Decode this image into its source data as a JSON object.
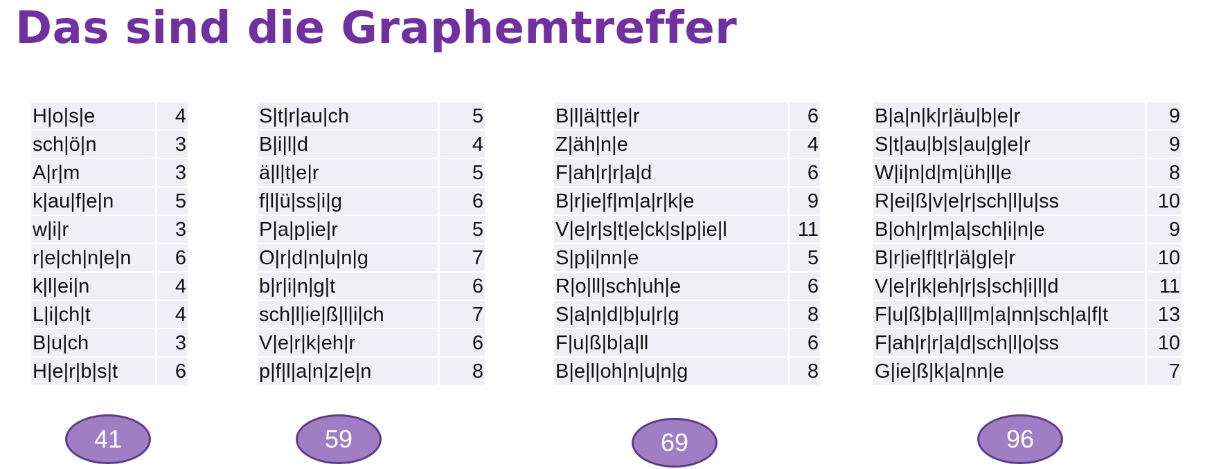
{
  "title": "Das sind die Graphemtreffer",
  "columns": [
    {
      "rows": [
        {
          "word": "H|o|s|e",
          "count": "4"
        },
        {
          "word": "sch|ö|n",
          "count": "3"
        },
        {
          "word": "A|r|m",
          "count": "3"
        },
        {
          "word": "k|au|f|e|n",
          "count": "5"
        },
        {
          "word": "w|i|r",
          "count": "3"
        },
        {
          "word": "r|e|ch|n|e|n",
          "count": "6"
        },
        {
          "word": "k|l|ei|n",
          "count": "4"
        },
        {
          "word": "L|i|ch|t",
          "count": "4"
        },
        {
          "word": "B|u|ch",
          "count": "3"
        },
        {
          "word": "H|e|r|b|s|t",
          "count": "6"
        }
      ],
      "total": "41"
    },
    {
      "rows": [
        {
          "word": "S|t|r|au|ch",
          "count": "5"
        },
        {
          "word": "B|i|l|d",
          "count": "4"
        },
        {
          "word": "ä|l|t|e|r",
          "count": "5"
        },
        {
          "word": "f|l|ü|ss|i|g",
          "count": "6"
        },
        {
          "word": "P|a|p|ie|r",
          "count": "5"
        },
        {
          "word": "O|r|d|n|u|n|g",
          "count": "7"
        },
        {
          "word": "b|r|i|n|g|t",
          "count": "6"
        },
        {
          "word": "sch|l|ie|ß|l|i|ch",
          "count": "7"
        },
        {
          "word": "V|e|r|k|eh|r",
          "count": "6"
        },
        {
          "word": "p|f|l|a|n|z|e|n",
          "count": "8"
        }
      ],
      "total": "59"
    },
    {
      "rows": [
        {
          "word": "B|l|ä|tt|e|r",
          "count": "6"
        },
        {
          "word": "Z|äh|n|e",
          "count": "4"
        },
        {
          "word": "F|ah|r|r|a|d",
          "count": "6"
        },
        {
          "word": "B|r|ie|f|m|a|r|k|e",
          "count": "9"
        },
        {
          "word": "V|e|r|s|t|e|ck|s|p|ie|l",
          "count": "11"
        },
        {
          "word": "S|p|i|nn|e",
          "count": "5"
        },
        {
          "word": "R|o|ll|sch|uh|e",
          "count": "6"
        },
        {
          "word": "S|a|n|d|b|u|r|g",
          "count": "8"
        },
        {
          "word": "F|u|ß|b|a|ll",
          "count": "6"
        },
        {
          "word": "B|e|l|oh|n|u|n|g",
          "count": "8"
        }
      ],
      "total": "69"
    },
    {
      "rows": [
        {
          "word": "B|a|n|k|r|äu|b|e|r",
          "count": "9"
        },
        {
          "word": "S|t|au|b|s|au|g|e|r",
          "count": "9"
        },
        {
          "word": "W|i|n|d|m|üh|l|e",
          "count": "8"
        },
        {
          "word": "R|ei|ß|v|e|r|sch|l|u|ss",
          "count": "10"
        },
        {
          "word": "B|oh|r|m|a|sch|i|n|e",
          "count": "9"
        },
        {
          "word": "B|r|ie|f|t|r|ä|g|e|r",
          "count": "10"
        },
        {
          "word": "V|e|r|k|eh|r|s|sch|i|l|d",
          "count": "11"
        },
        {
          "word": "F|u|ß|b|a|ll|m|a|nn|sch|a|f|t",
          "count": "13"
        },
        {
          "word": "F|ah|r|r|a|d|sch|l|o|ss",
          "count": "10"
        },
        {
          "word": "G|ie|ß|k|a|nn|e",
          "count": "7"
        }
      ],
      "total": "96"
    }
  ],
  "colors": {
    "title": "#7030a0",
    "oval_fill": "#a07ec4",
    "oval_border": "#5e3b87",
    "row_bg": "#efeff5"
  }
}
